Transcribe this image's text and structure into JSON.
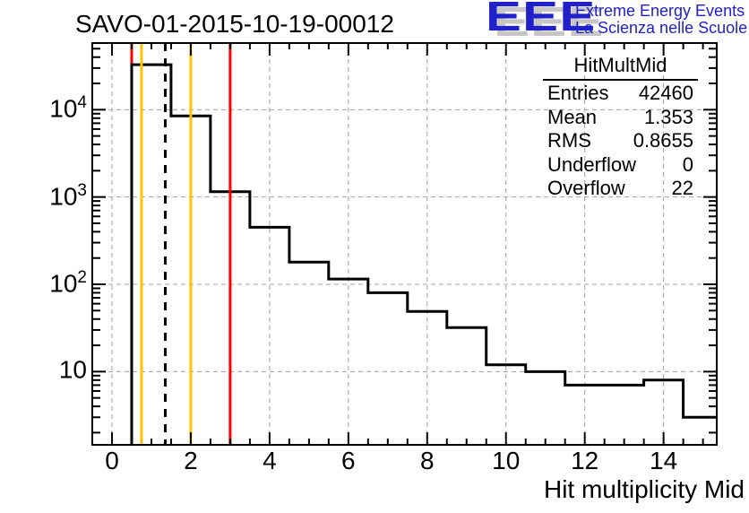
{
  "header": {
    "title": "SAVO-01-2015-10-19-00012"
  },
  "logo": {
    "acronym": "EEE",
    "line1": "Extreme Energy Events",
    "line2": "La Scienza nelle Scuole",
    "blue": "#2121cc",
    "shadow_gray": "#c6c6c6"
  },
  "stats_box": {
    "title": "HitMultMid",
    "rows": [
      {
        "label": "Entries",
        "value": "42460"
      },
      {
        "label": "Mean",
        "value": "1.353"
      },
      {
        "label": "RMS",
        "value": "0.8655"
      },
      {
        "label": "Underflow",
        "value": "0"
      },
      {
        "label": "Overflow",
        "value": "22"
      }
    ]
  },
  "chart_data": {
    "type": "bar",
    "subtype": "step-histogram-outline",
    "title": "SAVO-01-2015-10-19-00012",
    "xlabel": "Hit multiplicity Mid",
    "ylabel": "",
    "y_scale": "log",
    "xlim": [
      -0.5,
      15.35
    ],
    "ylim": [
      1.45,
      58000
    ],
    "bin_start": 0.5,
    "bin_width": 1,
    "counts": [
      32800,
      8500,
      1150,
      450,
      180,
      115,
      80,
      49,
      32,
      12,
      10,
      7,
      7,
      8,
      3
    ],
    "line_color": "#000000",
    "x_major_ticks": [
      0,
      2,
      4,
      6,
      8,
      10,
      12,
      14
    ],
    "x_tick_labels": [
      "0",
      "2",
      "4",
      "6",
      "8",
      "10",
      "12",
      "14"
    ],
    "x_minor_step": 0.5,
    "y_major_ticks": [
      10,
      100,
      1000,
      10000
    ],
    "y_tick_labels": [
      {
        "value": 10,
        "base": "10",
        "exp": ""
      },
      {
        "value": 100,
        "base": "10",
        "exp": "2"
      },
      {
        "value": 1000,
        "base": "10",
        "exp": "3"
      },
      {
        "value": 10000,
        "base": "10",
        "exp": "4"
      }
    ],
    "grid": {
      "color": "#a0a0a0",
      "dash": "5,4"
    },
    "marker_lines": [
      {
        "name": "limit-low-red",
        "x": 0.5,
        "color": "#ff0000",
        "dash": "",
        "layer": "under"
      },
      {
        "name": "warn-low-yellow",
        "x": 0.75,
        "color": "#ffc400",
        "dash": "",
        "layer": "over"
      },
      {
        "name": "mean-line-dashed",
        "x": 1.353,
        "color": "#000000",
        "dash": "9,8",
        "layer": "over"
      },
      {
        "name": "warn-high-yellow",
        "x": 2.0,
        "color": "#ffc400",
        "dash": "",
        "layer": "over"
      },
      {
        "name": "limit-high-red",
        "x": 3.0,
        "color": "#ff0000",
        "dash": "",
        "layer": "over"
      }
    ],
    "legend": null,
    "grid_on": true
  }
}
